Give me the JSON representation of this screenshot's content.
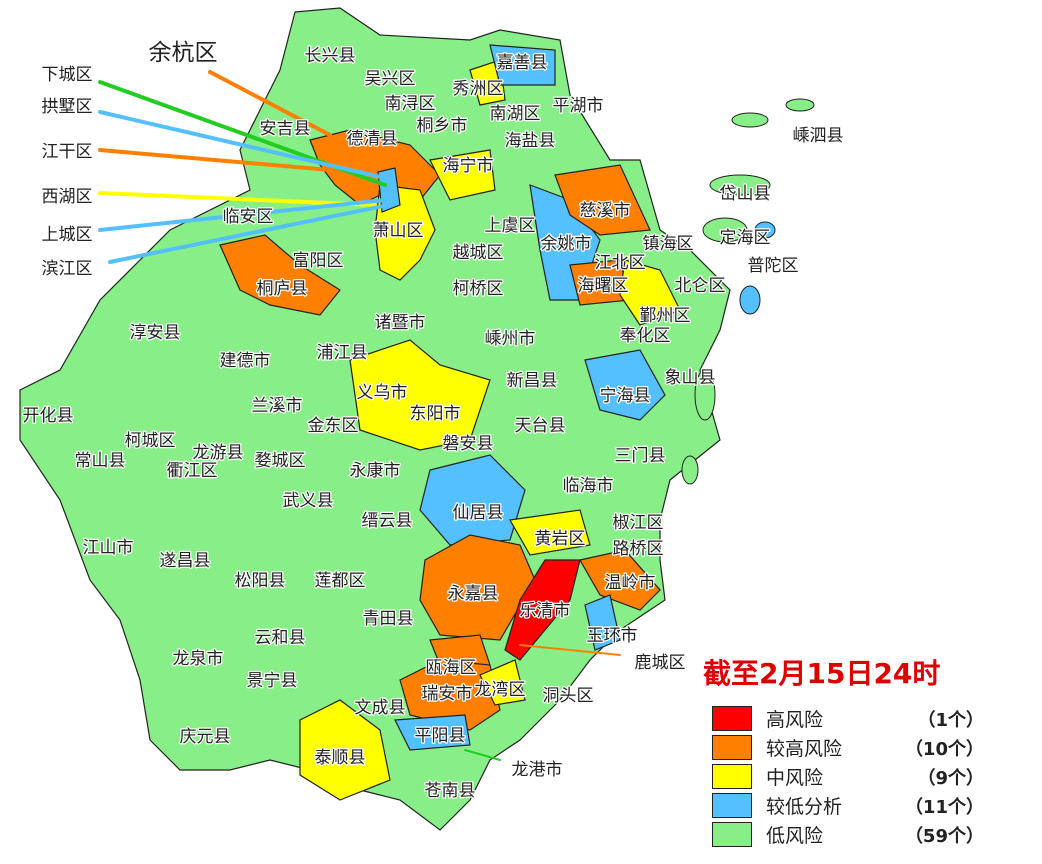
{
  "map_title": "截至2月15日24时",
  "colors": {
    "high": "#ff0000",
    "higher": "#ff8000",
    "medium": "#ffff00",
    "lower": "#55c0ff",
    "low": "#88ee88"
  },
  "legend": [
    {
      "label": "高风险",
      "count": "（1个）",
      "color": "#ff0000"
    },
    {
      "label": "较高风险",
      "count": "（10个）",
      "color": "#ff8000"
    },
    {
      "label": "中风险",
      "count": "（9个）",
      "color": "#ffff00"
    },
    {
      "label": "较低分析",
      "count": "（11个）",
      "color": "#55c0ff"
    },
    {
      "label": "低风险",
      "count": "（59个）",
      "color": "#88ee88"
    }
  ],
  "callouts": [
    "余杭区",
    "下城区",
    "拱墅区",
    "江干区",
    "西湖区",
    "上城区",
    "滨江区",
    "鹿城区",
    "龙港市"
  ],
  "labels": [
    "长兴县",
    "吴兴区",
    "嘉善县",
    "秀洲区",
    "南浔区",
    "南湖区",
    "平湖市",
    "桐乡市",
    "海盐县",
    "安吉县",
    "德清县",
    "嵊泗县",
    "海宁市",
    "慈溪市",
    "岱山县",
    "临安区",
    "萧山区",
    "上虞区",
    "余姚市",
    "镇海区",
    "定海区",
    "普陀区",
    "江北区",
    "富阳区",
    "越城区",
    "柯桥区",
    "海曙区",
    "北仑区",
    "桐庐县",
    "诸暨市",
    "鄞州区",
    "淳安县",
    "嵊州市",
    "奉化区",
    "建德市",
    "浦江县",
    "新昌县",
    "象山县",
    "宁海县",
    "义乌市",
    "兰溪市",
    "东阳市",
    "金东区",
    "开化县",
    "柯城区",
    "龙游县",
    "天台县",
    "磐安县",
    "三门县",
    "常山县",
    "衢江区",
    "婺城区",
    "永康市",
    "临海市",
    "武义县",
    "仙居县",
    "缙云县",
    "黄岩区",
    "椒江区",
    "路桥区",
    "江山市",
    "遂昌县",
    "松阳县",
    "莲都区",
    "永嘉县",
    "乐清市",
    "温岭市",
    "青田县",
    "玉环市",
    "龙泉市",
    "云和县",
    "景宁县",
    "瓯海区",
    "瑞安市",
    "龙湾区",
    "洞头区",
    "文成县",
    "庆元县",
    "平阳县",
    "泰顺县",
    "苍南县"
  ]
}
